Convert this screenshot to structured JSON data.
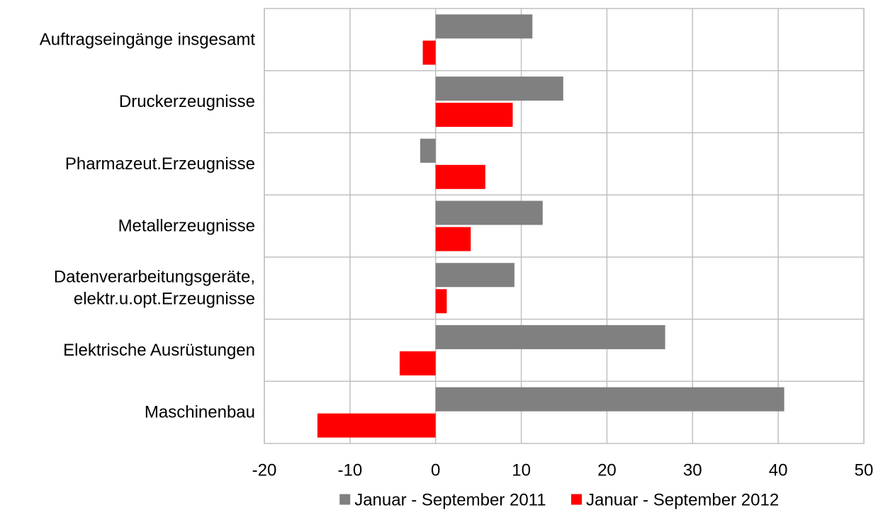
{
  "chart_data": {
    "type": "bar",
    "orientation": "horizontal",
    "title": "",
    "xlabel": "",
    "ylabel": "",
    "categories": [
      [
        "Auftragseingänge insgesamt"
      ],
      [
        "Druckerzeugnisse"
      ],
      [
        "Pharmazeut.Erzeugnisse"
      ],
      [
        "Metallerzeugnisse"
      ],
      [
        "Datenverarbeitungsgeräte,",
        "elektr.u.opt.Erzeugnisse"
      ],
      [
        "Elektrische Ausrüstungen"
      ],
      [
        "Maschinenbau"
      ]
    ],
    "series": [
      {
        "name": "Januar - September 2011",
        "color": "#808080",
        "values": [
          11.3,
          14.9,
          -1.8,
          12.5,
          9.2,
          26.8,
          40.7
        ]
      },
      {
        "name": "Januar - September 2012",
        "color": "#ff0000",
        "values": [
          -1.5,
          9.0,
          5.8,
          4.1,
          1.3,
          -4.2,
          -13.8
        ]
      }
    ],
    "xlim": [
      -20,
      50
    ],
    "xticks": [
      -20,
      -10,
      0,
      10,
      20,
      30,
      40,
      50
    ],
    "grid": true,
    "legend_position": "bottom"
  }
}
